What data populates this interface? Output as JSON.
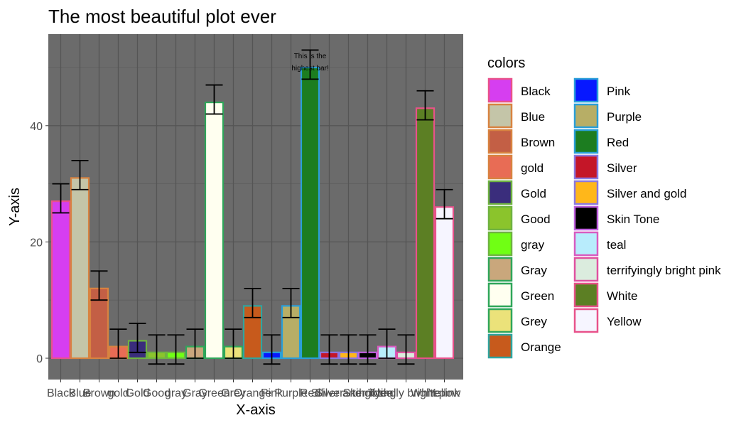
{
  "chart_data": {
    "type": "bar",
    "title": "The most beautiful plot ever",
    "xlabel": "X-axis",
    "ylabel": "Y-axis",
    "ylim": [
      -4,
      56
    ],
    "yticks": [
      0,
      20,
      40
    ],
    "grid": true,
    "legend": {
      "title": "colors",
      "placement": "right",
      "columns": 2
    },
    "categories": [
      "Black",
      "Blue",
      "Brown",
      "gold",
      "Gold",
      "Good",
      "gray",
      "Gray",
      "Green",
      "Grey",
      "Orange",
      "Pink",
      "Purple",
      "Red",
      "Silver",
      "Silver and gold",
      "Skin Tone",
      "teal",
      "terrifyingly bright pink",
      "White",
      "Yellow"
    ],
    "values": [
      27,
      31,
      12,
      2,
      3,
      1,
      1,
      2,
      44,
      2,
      9,
      1,
      9,
      50,
      1,
      1,
      1,
      2,
      1,
      43,
      26
    ],
    "error_low": [
      25,
      29,
      10,
      0,
      1,
      -1,
      -1,
      0,
      42,
      0,
      7,
      -1,
      7,
      48,
      -1,
      -1,
      -1,
      0,
      -1,
      41,
      24
    ],
    "error_high": [
      30,
      34,
      15,
      5,
      6,
      4,
      4,
      5,
      47,
      5,
      12,
      4,
      12,
      53,
      4,
      4,
      4,
      5,
      4,
      46,
      29
    ],
    "fill_colors": [
      "#d63ef0",
      "#c4c5a8",
      "#c35f45",
      "#e86c55",
      "#3a2d7c",
      "#8bc42c",
      "#70ff14",
      "#c9a77c",
      "#fffff0",
      "#ebe27a",
      "#c75a1c",
      "#0718ff",
      "#b7ae66",
      "#1c7d20",
      "#c41628",
      "#ffb71a",
      "#000000",
      "#b8ecfc",
      "#dbecde",
      "#5c7f24",
      "#f6f5ff"
    ],
    "outline_colors": [
      "#e8528a",
      "#d88340",
      "#d88340",
      "#d88340",
      "#6fb241",
      "#6fb241",
      "#6fb241",
      "#2fa65a",
      "#2fa65a",
      "#2fa65a",
      "#2fa5a0",
      "#2a9fd8",
      "#2a9fd8",
      "#2a9fd8",
      "#8a78e0",
      "#8a78e0",
      "#c060e0",
      "#d85bc0",
      "#e050a0",
      "#e8528a",
      "#e8528a"
    ],
    "annotation": {
      "category": "Red",
      "y": 51,
      "lines": [
        "This is the",
        "highest bar!"
      ]
    }
  }
}
